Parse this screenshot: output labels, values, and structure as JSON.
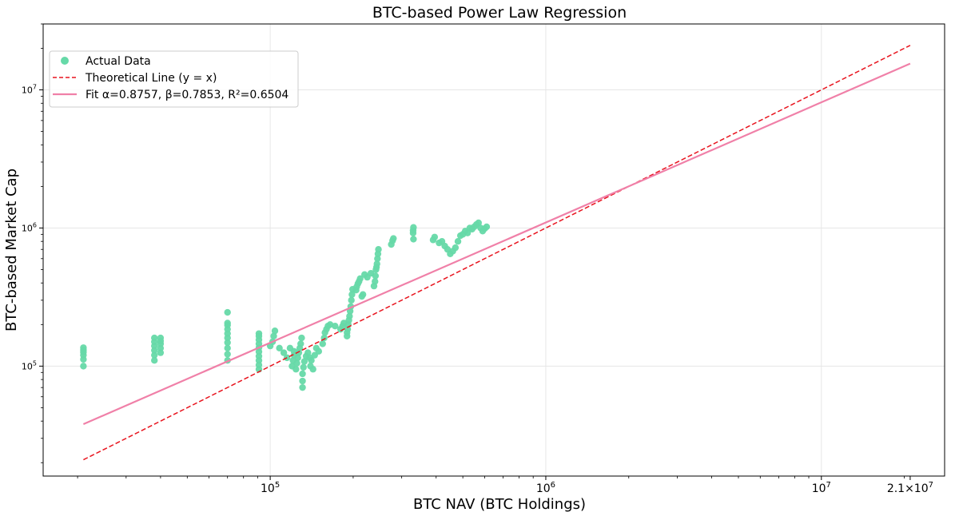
{
  "chart_data": {
    "type": "scatter",
    "title": "BTC-based Power Law Regression",
    "xlabel": "BTC NAV (BTC Holdings)",
    "ylabel": "BTC-based Market Cap",
    "x_scale": "log",
    "y_scale": "log",
    "xlim": [
      15000,
      28000000
    ],
    "ylim": [
      16000,
      30000000
    ],
    "grid": true,
    "legend_position": "top-left",
    "x_ticks": [
      {
        "value": 100000,
        "base": "10",
        "exp": "5"
      },
      {
        "value": 1000000,
        "base": "10",
        "exp": "6"
      },
      {
        "value": 10000000,
        "base": "10",
        "exp": "7"
      },
      {
        "value": 21000000,
        "base": "2.1×10",
        "exp": "7"
      }
    ],
    "y_ticks": [
      {
        "value": 100000,
        "base": "10",
        "exp": "5"
      },
      {
        "value": 1000000,
        "base": "10",
        "exp": "6"
      },
      {
        "value": 10000000,
        "base": "10",
        "exp": "7"
      }
    ],
    "series": [
      {
        "name": "Actual Data",
        "kind": "scatter",
        "color": "#66d9a8",
        "points": [
          [
            21000,
            100000
          ],
          [
            21000,
            112000
          ],
          [
            21000,
            120000
          ],
          [
            21000,
            126000
          ],
          [
            21000,
            131000
          ],
          [
            21000,
            136000
          ],
          [
            38000,
            110000
          ],
          [
            38000,
            120000
          ],
          [
            38000,
            130000
          ],
          [
            38000,
            140000
          ],
          [
            38000,
            150000
          ],
          [
            38000,
            160000
          ],
          [
            40000,
            125000
          ],
          [
            40000,
            135000
          ],
          [
            40000,
            145000
          ],
          [
            40000,
            152000
          ],
          [
            40000,
            160000
          ],
          [
            70000,
            110000
          ],
          [
            70000,
            122000
          ],
          [
            70000,
            135000
          ],
          [
            70000,
            148000
          ],
          [
            70000,
            160000
          ],
          [
            70000,
            172000
          ],
          [
            70000,
            185000
          ],
          [
            70000,
            198000
          ],
          [
            70000,
            205000
          ],
          [
            70000,
            245000
          ],
          [
            91000,
            95000
          ],
          [
            91000,
            102000
          ],
          [
            91000,
            110000
          ],
          [
            91000,
            118000
          ],
          [
            91000,
            127000
          ],
          [
            91000,
            136000
          ],
          [
            91000,
            145000
          ],
          [
            91000,
            155000
          ],
          [
            91000,
            165000
          ],
          [
            91000,
            172000
          ],
          [
            100000,
            140000
          ],
          [
            102000,
            150000
          ],
          [
            103000,
            165000
          ],
          [
            104000,
            180000
          ],
          [
            108000,
            135000
          ],
          [
            112000,
            125000
          ],
          [
            115000,
            115000
          ],
          [
            118000,
            135000
          ],
          [
            120000,
            100000
          ],
          [
            121000,
            110000
          ],
          [
            122000,
            120000
          ],
          [
            122000,
            128000
          ],
          [
            124000,
            95000
          ],
          [
            125000,
            105000
          ],
          [
            126000,
            115000
          ],
          [
            127000,
            125000
          ],
          [
            128000,
            135000
          ],
          [
            129000,
            145000
          ],
          [
            130000,
            160000
          ],
          [
            131000,
            70000
          ],
          [
            131000,
            78000
          ],
          [
            131000,
            88000
          ],
          [
            132000,
            98000
          ],
          [
            133000,
            108000
          ],
          [
            135000,
            118000
          ],
          [
            137000,
            125000
          ],
          [
            139000,
            115000
          ],
          [
            140000,
            100000
          ],
          [
            141000,
            110000
          ],
          [
            143000,
            95000
          ],
          [
            145000,
            120000
          ],
          [
            147000,
            135000
          ],
          [
            150000,
            128000
          ],
          [
            155000,
            145000
          ],
          [
            157000,
            160000
          ],
          [
            158000,
            175000
          ],
          [
            160000,
            185000
          ],
          [
            162000,
            195000
          ],
          [
            165000,
            200000
          ],
          [
            172000,
            195000
          ],
          [
            180000,
            185000
          ],
          [
            183000,
            195000
          ],
          [
            185000,
            205000
          ],
          [
            190000,
            165000
          ],
          [
            190000,
            175000
          ],
          [
            191000,
            185000
          ],
          [
            192000,
            200000
          ],
          [
            193000,
            215000
          ],
          [
            194000,
            230000
          ],
          [
            195000,
            250000
          ],
          [
            196000,
            270000
          ],
          [
            197000,
            300000
          ],
          [
            198000,
            330000
          ],
          [
            199000,
            360000
          ],
          [
            205000,
            355000
          ],
          [
            206000,
            375000
          ],
          [
            208000,
            395000
          ],
          [
            210000,
            410000
          ],
          [
            212000,
            430000
          ],
          [
            215000,
            320000
          ],
          [
            217000,
            330000
          ],
          [
            220000,
            460000
          ],
          [
            225000,
            440000
          ],
          [
            232000,
            470000
          ],
          [
            238000,
            380000
          ],
          [
            240000,
            410000
          ],
          [
            241000,
            450000
          ],
          [
            242000,
            500000
          ],
          [
            243000,
            520000
          ],
          [
            244000,
            550000
          ],
          [
            245000,
            600000
          ],
          [
            246000,
            650000
          ],
          [
            247000,
            700000
          ],
          [
            275000,
            760000
          ],
          [
            278000,
            810000
          ],
          [
            280000,
            840000
          ],
          [
            330000,
            920000
          ],
          [
            330000,
            960000
          ],
          [
            331000,
            1010000
          ],
          [
            331000,
            830000
          ],
          [
            390000,
            820000
          ],
          [
            395000,
            860000
          ],
          [
            410000,
            780000
          ],
          [
            420000,
            800000
          ],
          [
            430000,
            740000
          ],
          [
            440000,
            700000
          ],
          [
            450000,
            650000
          ],
          [
            460000,
            680000
          ],
          [
            470000,
            720000
          ],
          [
            480000,
            800000
          ],
          [
            490000,
            880000
          ],
          [
            500000,
            900000
          ],
          [
            510000,
            950000
          ],
          [
            520000,
            920000
          ],
          [
            530000,
            1000000
          ],
          [
            540000,
            980000
          ],
          [
            550000,
            1020000
          ],
          [
            560000,
            1060000
          ],
          [
            570000,
            1090000
          ],
          [
            580000,
            1000000
          ],
          [
            590000,
            950000
          ],
          [
            600000,
            990000
          ],
          [
            610000,
            1020000
          ]
        ]
      },
      {
        "name": "Theoretical Line (y = x)",
        "kind": "line",
        "style": "dashed",
        "color": "#e8141e",
        "points": [
          [
            21000,
            21000
          ],
          [
            21000000,
            21000000
          ]
        ]
      },
      {
        "name": "Fit α=0.8757, β=0.7853, R²=0.6504",
        "kind": "line",
        "style": "solid",
        "color": "#f080a8",
        "points": [
          [
            21000,
            38000
          ],
          [
            21000000,
            15500000
          ]
        ]
      }
    ]
  }
}
